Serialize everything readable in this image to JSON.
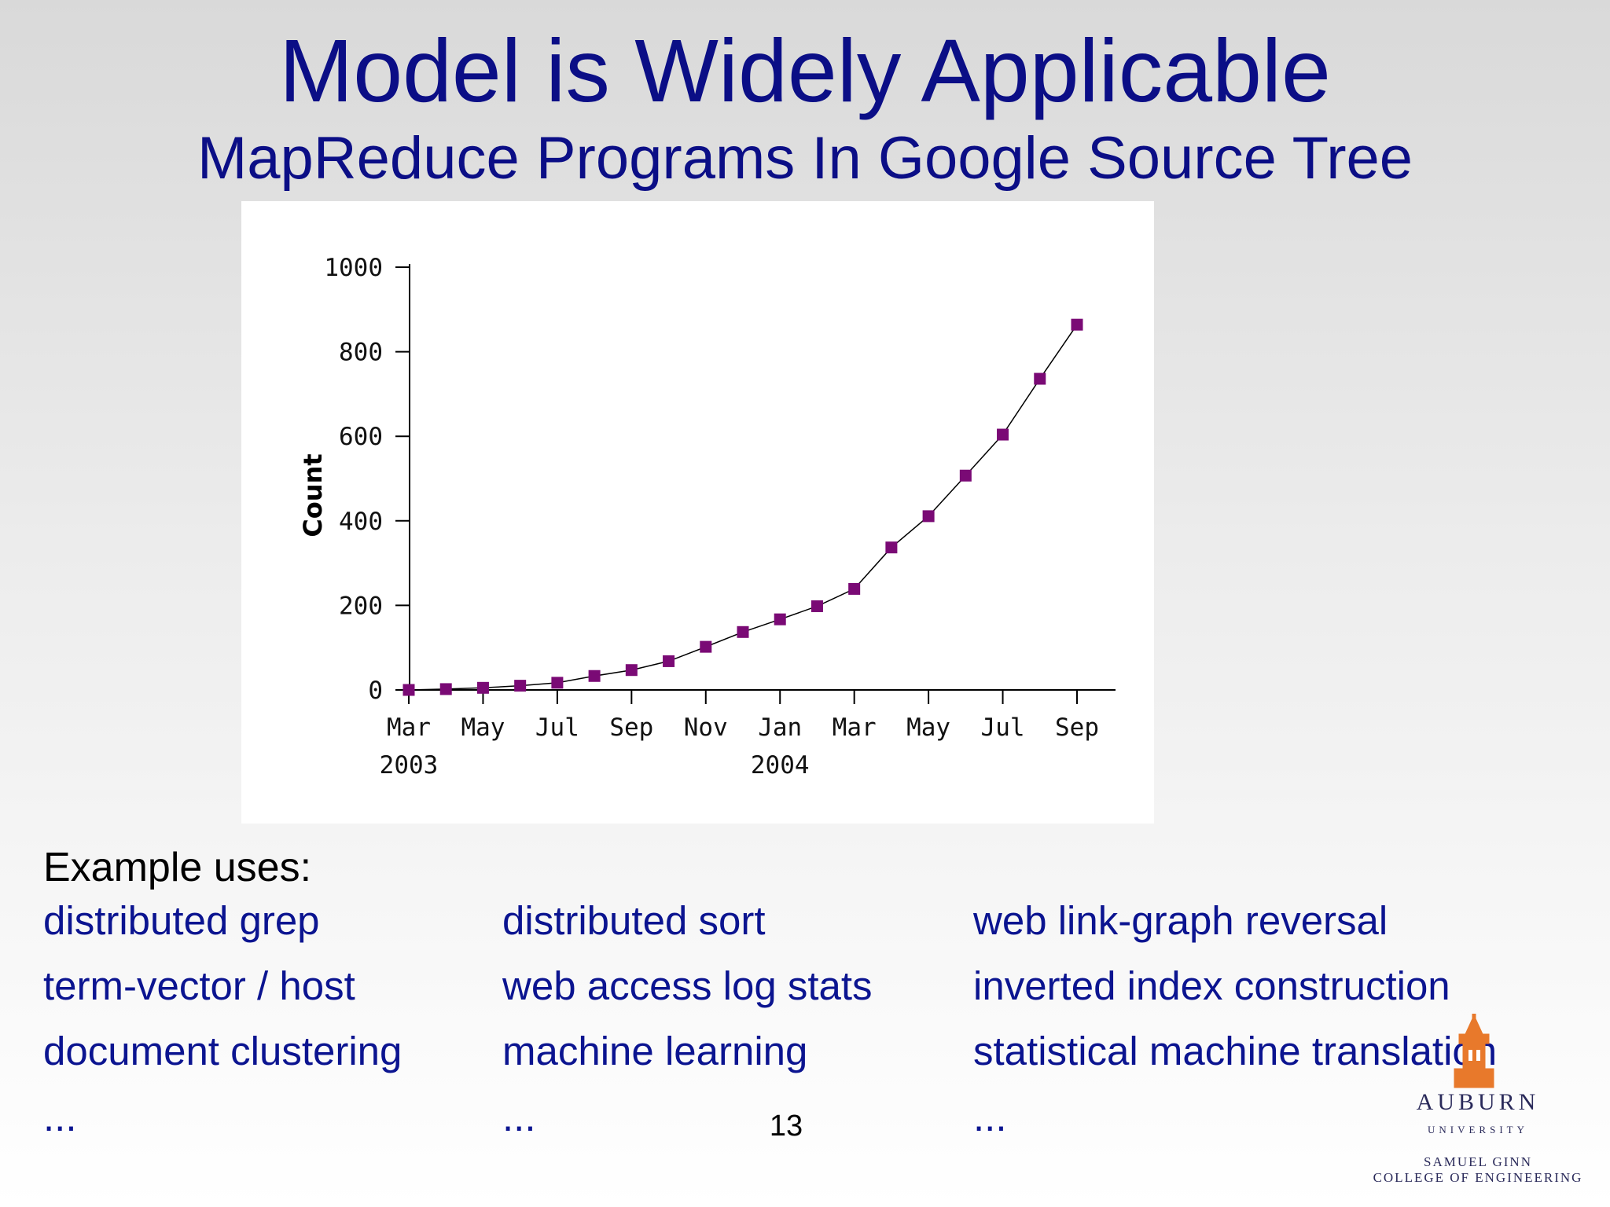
{
  "slide": {
    "title": "Model is Widely Applicable",
    "subtitle": "MapReduce Programs In Google Source Tree",
    "page_number": "13"
  },
  "examples": {
    "heading": "Example uses:",
    "columns": [
      [
        "distributed grep",
        "term-vector / host",
        "document clustering",
        "..."
      ],
      [
        "distributed sort",
        "web access log stats",
        "machine learning",
        "..."
      ],
      [
        "web link-graph reversal",
        "inverted index construction",
        "statistical machine translation",
        "..."
      ]
    ]
  },
  "logo": {
    "name": "AUBURN",
    "sub": "UNIVERSITY",
    "line1": "Samuel Ginn",
    "line2": "College of Engineering",
    "color": "#e8792b"
  },
  "colors": {
    "title": "#0b0e86",
    "body_text": "#0b1490",
    "marker": "#7a0a75"
  },
  "chart_data": {
    "type": "line",
    "title": "",
    "xlabel": "",
    "ylabel": "Count",
    "ylim": [
      0,
      1000
    ],
    "yticks": [
      0,
      200,
      400,
      600,
      800,
      1000
    ],
    "xtick_labels": [
      "Mar",
      "May",
      "Jul",
      "Sep",
      "Nov",
      "Jan",
      "Mar",
      "May",
      "Jul",
      "Sep"
    ],
    "year_labels": [
      {
        "label": "2003",
        "tick_index": 0
      },
      {
        "label": "2004",
        "tick_index": 5
      }
    ],
    "x_months": [
      "2003-03",
      "2003-04",
      "2003-05",
      "2003-06",
      "2003-07",
      "2003-08",
      "2003-09",
      "2003-10",
      "2003-11",
      "2003-12",
      "2004-01",
      "2004-02",
      "2004-03",
      "2004-04",
      "2004-05",
      "2004-06",
      "2004-07",
      "2004-08",
      "2004-09"
    ],
    "series": [
      {
        "values": [
          0,
          2,
          5,
          10,
          17,
          33,
          47,
          68,
          102,
          137,
          167,
          198,
          239,
          337,
          411,
          507,
          604,
          736,
          864
        ]
      }
    ],
    "grid": false,
    "legend": "none"
  }
}
